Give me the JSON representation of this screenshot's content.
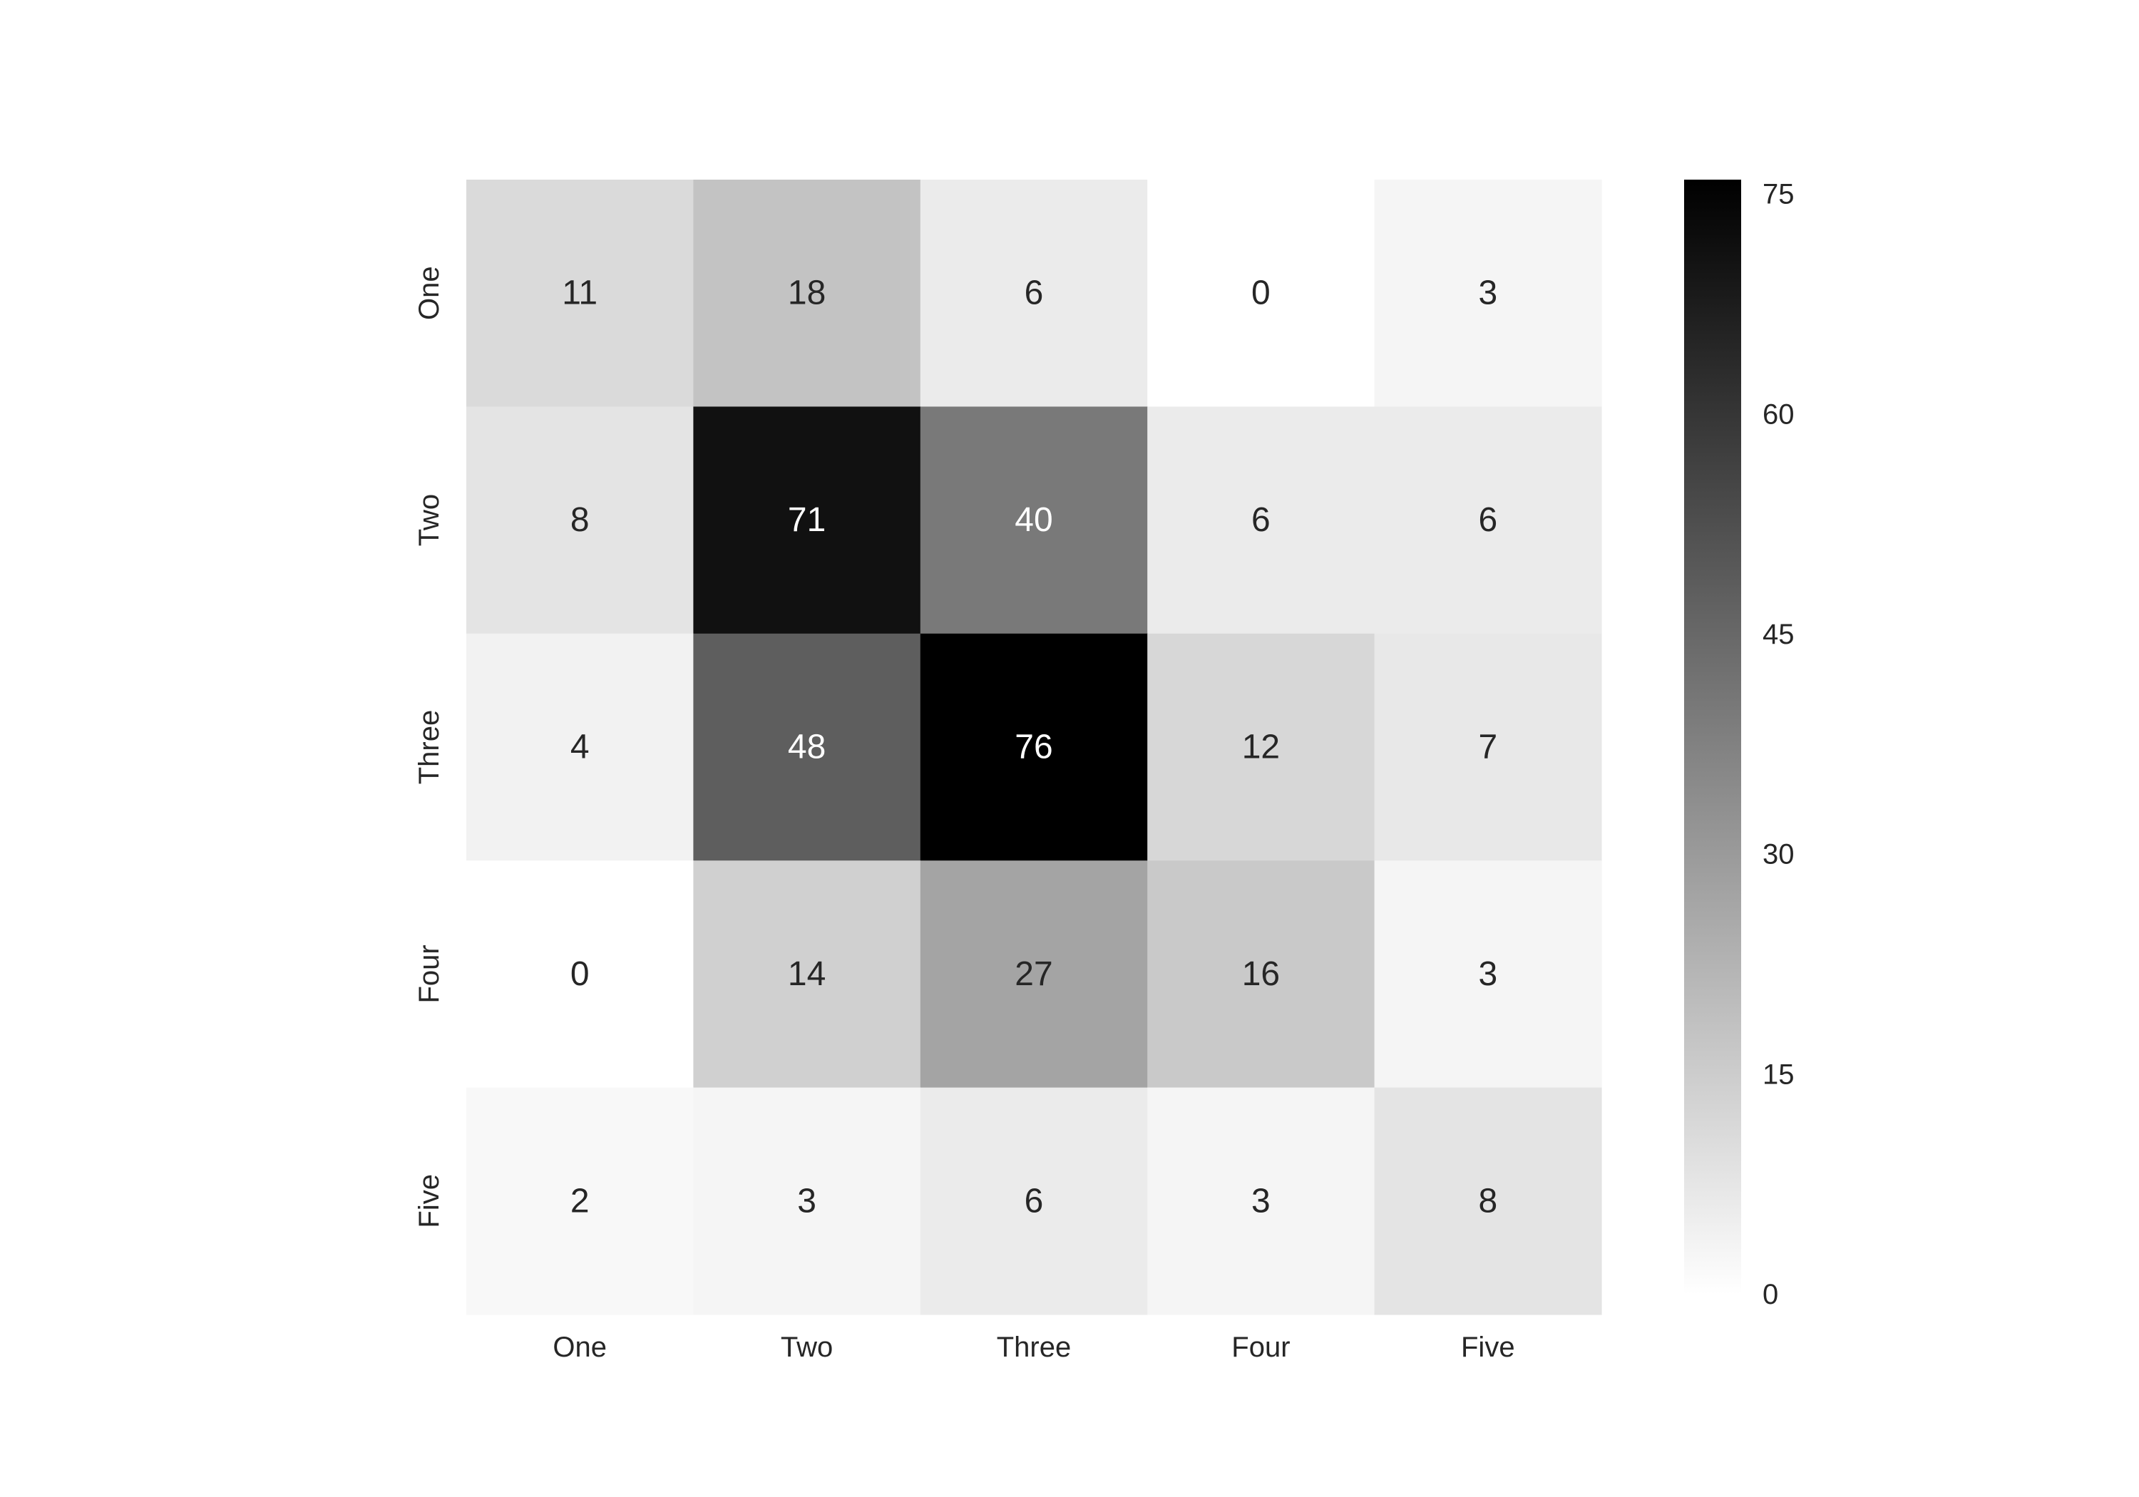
{
  "chart_data": {
    "type": "heatmap",
    "title": "",
    "xlabel": "",
    "ylabel": "",
    "x_categories": [
      "One",
      "Two",
      "Three",
      "Four",
      "Five"
    ],
    "y_categories": [
      "One",
      "Two",
      "Three",
      "Four",
      "Five"
    ],
    "values": [
      [
        11,
        18,
        6,
        0,
        3
      ],
      [
        8,
        71,
        40,
        6,
        6
      ],
      [
        4,
        48,
        76,
        12,
        7
      ],
      [
        0,
        14,
        27,
        16,
        3
      ],
      [
        2,
        3,
        6,
        3,
        8
      ]
    ],
    "colormap": "Greys",
    "color_low": "#ffffff",
    "color_high": "#000000",
    "value_range": [
      0,
      76
    ],
    "annotations": true,
    "colorbar": {
      "ticks": [
        0,
        15,
        30,
        45,
        60,
        75
      ],
      "placement": "right"
    },
    "grid": false
  }
}
